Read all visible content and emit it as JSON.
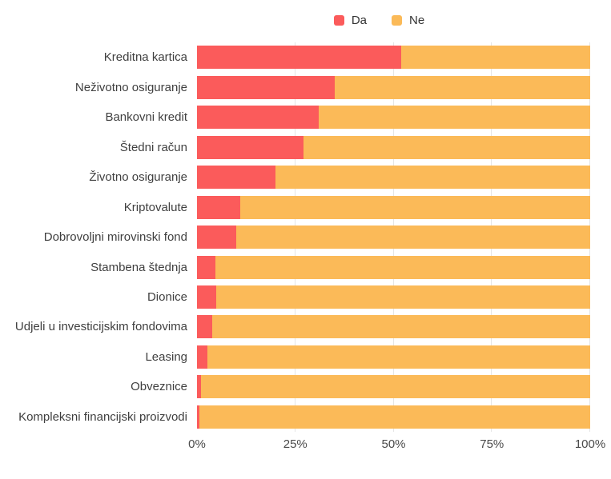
{
  "chart_data": {
    "type": "bar",
    "orientation": "horizontal",
    "stacked": true,
    "title": "",
    "xlabel": "",
    "ylabel": "",
    "unit": "%",
    "legend_position": "top",
    "categories": [
      "Kreditna kartica",
      "Neživotno osiguranje",
      "Bankovni kredit",
      "Štedni račun",
      "Životno osiguranje",
      "Kriptovalute",
      "Dobrovoljni mirovinski fond",
      "Stambena štednja",
      "Dionice",
      "Udjeli u investicijskim fondovima",
      "Leasing",
      "Obveznice",
      "Kompleksni financijski proizvodi"
    ],
    "series": [
      {
        "name": "Da",
        "color": "#FB5B5B",
        "values": [
          52,
          35,
          31,
          27,
          20,
          11,
          10,
          4.7,
          4.9,
          3.8,
          2.7,
          1,
          0.7
        ]
      },
      {
        "name": "Ne",
        "color": "#FBBA58",
        "values": [
          48,
          65,
          69,
          73,
          80,
          89,
          90,
          95.3,
          95.1,
          96.2,
          97.3,
          99,
          99.3
        ]
      }
    ],
    "x_axis": {
      "range": [
        0,
        100
      ],
      "ticks": [
        {
          "label": "0%",
          "value": 0
        },
        {
          "label": "25%",
          "value": 25
        },
        {
          "label": "50%",
          "value": 50
        },
        {
          "label": "75%",
          "value": 75
        },
        {
          "label": "100%",
          "value": 100
        }
      ]
    },
    "gridlines": {
      "color": "#E5E5E5",
      "positions": [
        25,
        50,
        75,
        100
      ]
    }
  }
}
